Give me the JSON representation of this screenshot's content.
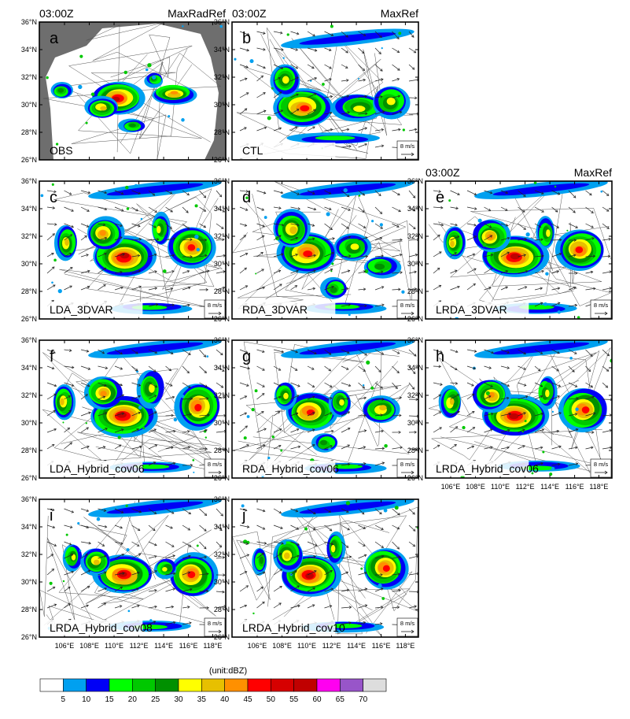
{
  "figure": {
    "lat_ticks": [
      "26°N",
      "28°N",
      "30°N",
      "32°N",
      "34°N",
      "36°N"
    ],
    "lon_ticks": [
      "106°E",
      "108°E",
      "110°E",
      "112°E",
      "114°E",
      "116°E",
      "118°E"
    ],
    "unit_label": "(unit:dBZ)",
    "colorbar": {
      "levels": [
        "5",
        "10",
        "15",
        "20",
        "25",
        "30",
        "35",
        "40",
        "45",
        "50",
        "55",
        "60",
        "65",
        "70"
      ],
      "colors": [
        "#ffffff",
        "#00a0f0",
        "#0000f6",
        "#00ff00",
        "#00c800",
        "#009000",
        "#ffff00",
        "#e7c000",
        "#ff9000",
        "#ff0000",
        "#d60000",
        "#c00000",
        "#ff00f0",
        "#9855c9",
        "#dddddd"
      ]
    },
    "vector_ref_label": "8 m/s",
    "panels": [
      {
        "id": "a",
        "letter": "a",
        "label": "OBS",
        "time": "03:00Z",
        "field": "MaxRadRef",
        "has_vectors": false
      },
      {
        "id": "b",
        "letter": "b",
        "label": "CTL",
        "time": "03:00Z",
        "field": "MaxRef",
        "has_vectors": true
      },
      {
        "id": "c",
        "letter": "c",
        "label": "LDA_3DVAR",
        "has_vectors": true
      },
      {
        "id": "d",
        "letter": "d",
        "label": "RDA_3DVAR",
        "has_vectors": true
      },
      {
        "id": "e",
        "letter": "e",
        "label": "LRDA_3DVAR",
        "time": "03:00Z",
        "field": "MaxRef",
        "has_vectors": true
      },
      {
        "id": "f",
        "letter": "f",
        "label": "LDA_Hybrid_cov06",
        "has_vectors": true
      },
      {
        "id": "g",
        "letter": "g",
        "label": "RDA_Hybrid_cov06",
        "has_vectors": true
      },
      {
        "id": "h",
        "letter": "h",
        "label": "LRDA_Hybrid_cov06",
        "has_vectors": true
      },
      {
        "id": "i",
        "letter": "i",
        "label": "LRDA_Hybrid_cov08",
        "has_vectors": true
      },
      {
        "id": "j",
        "letter": "j",
        "label": "LRDA_Hybrid_cov10",
        "has_vectors": true
      }
    ]
  }
}
